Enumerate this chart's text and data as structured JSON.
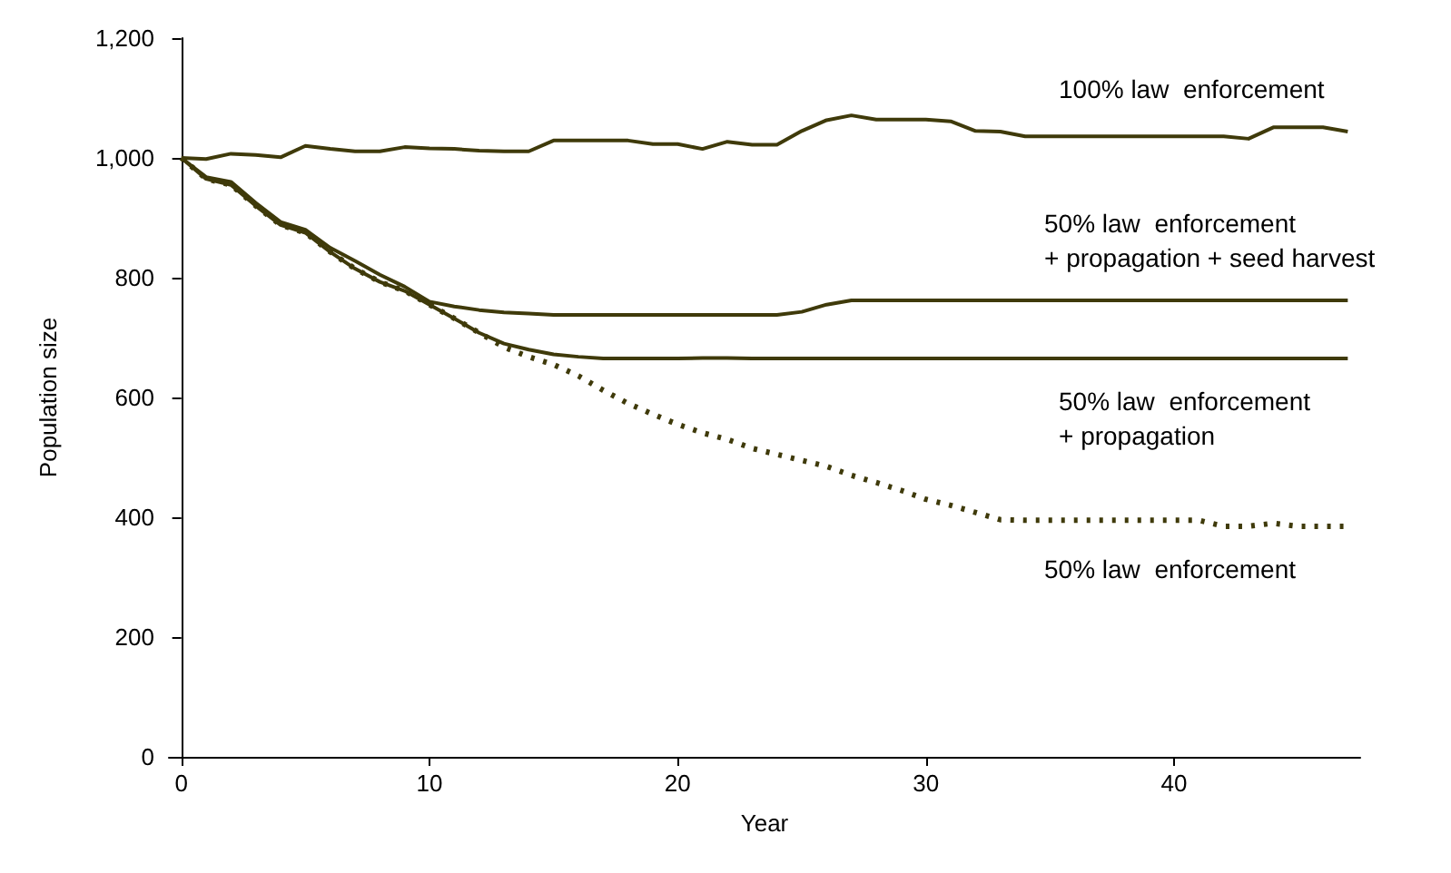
{
  "chart_data": {
    "type": "line",
    "xlabel": "Year",
    "ylabel": "Population size",
    "x": [
      0,
      1,
      2,
      3,
      4,
      5,
      6,
      7,
      8,
      9,
      10,
      11,
      12,
      13,
      14,
      15,
      16,
      17,
      18,
      19,
      20,
      21,
      22,
      23,
      24,
      25,
      26,
      27,
      28,
      29,
      30,
      31,
      32,
      33,
      34,
      35,
      36,
      37,
      38,
      39,
      40,
      41,
      42,
      43,
      44,
      45,
      46,
      47
    ],
    "series": [
      {
        "name": "100% law  enforcement",
        "color": "#3f3a0a",
        "line_style": "solid",
        "values": [
          1000,
          998,
          1007,
          1005,
          1001,
          1020,
          1015,
          1011,
          1011,
          1018,
          1016,
          1015,
          1012,
          1011,
          1011,
          1029,
          1029,
          1029,
          1029,
          1023,
          1023,
          1015,
          1027,
          1022,
          1022,
          1045,
          1063,
          1071,
          1064,
          1064,
          1064,
          1061,
          1045,
          1044,
          1036,
          1036,
          1036,
          1036,
          1036,
          1036,
          1036,
          1036,
          1036,
          1032,
          1051,
          1051,
          1051,
          1044
        ]
      },
      {
        "name": "50% law  enforcement\n+ propagation + seed harvest",
        "color": "#3f3a0a",
        "line_style": "solid",
        "values": [
          1000,
          968,
          960,
          925,
          893,
          880,
          850,
          828,
          805,
          785,
          760,
          752,
          746,
          742,
          740,
          738,
          738,
          738,
          738,
          738,
          738,
          738,
          738,
          738,
          738,
          743,
          755,
          762,
          762,
          762,
          762,
          762,
          762,
          762,
          762,
          762,
          762,
          762,
          762,
          762,
          762,
          762,
          762,
          762,
          762,
          762,
          762,
          762
        ]
      },
      {
        "name": "50% law  enforcement\n+ propagation",
        "color": "#3f3a0a",
        "line_style": "solid",
        "values": [
          1000,
          965,
          955,
          920,
          888,
          875,
          843,
          815,
          793,
          778,
          755,
          732,
          708,
          690,
          680,
          672,
          668,
          665,
          665,
          665,
          665,
          666,
          666,
          665,
          665,
          665,
          665,
          665,
          665,
          665,
          665,
          665,
          665,
          665,
          665,
          665,
          665,
          665,
          665,
          665,
          665,
          665,
          665,
          665,
          665,
          665,
          665,
          665
        ]
      },
      {
        "name": "50% law  enforcement",
        "color": "#3f3a0a",
        "line_style": "dotted",
        "values": [
          1000,
          965,
          955,
          920,
          888,
          875,
          843,
          815,
          793,
          778,
          755,
          732,
          708,
          684,
          668,
          655,
          636,
          612,
          590,
          572,
          555,
          541,
          530,
          515,
          505,
          495,
          485,
          470,
          458,
          445,
          430,
          420,
          408,
          396,
          395,
          395,
          395,
          395,
          395,
          395,
          395,
          395,
          385,
          385,
          390,
          385,
          385,
          385
        ]
      }
    ],
    "xlim": [
      -0.5,
      47.5
    ],
    "xticks": [
      0,
      10,
      20,
      30,
      40
    ],
    "ylim": [
      0,
      1200
    ],
    "yticks": [
      0,
      200,
      400,
      600,
      800,
      {
        "value": 1000,
        "label": "1,000"
      },
      {
        "value": 1200,
        "label": "1,200"
      }
    ],
    "grid": false,
    "legend": false,
    "marker": "none"
  }
}
